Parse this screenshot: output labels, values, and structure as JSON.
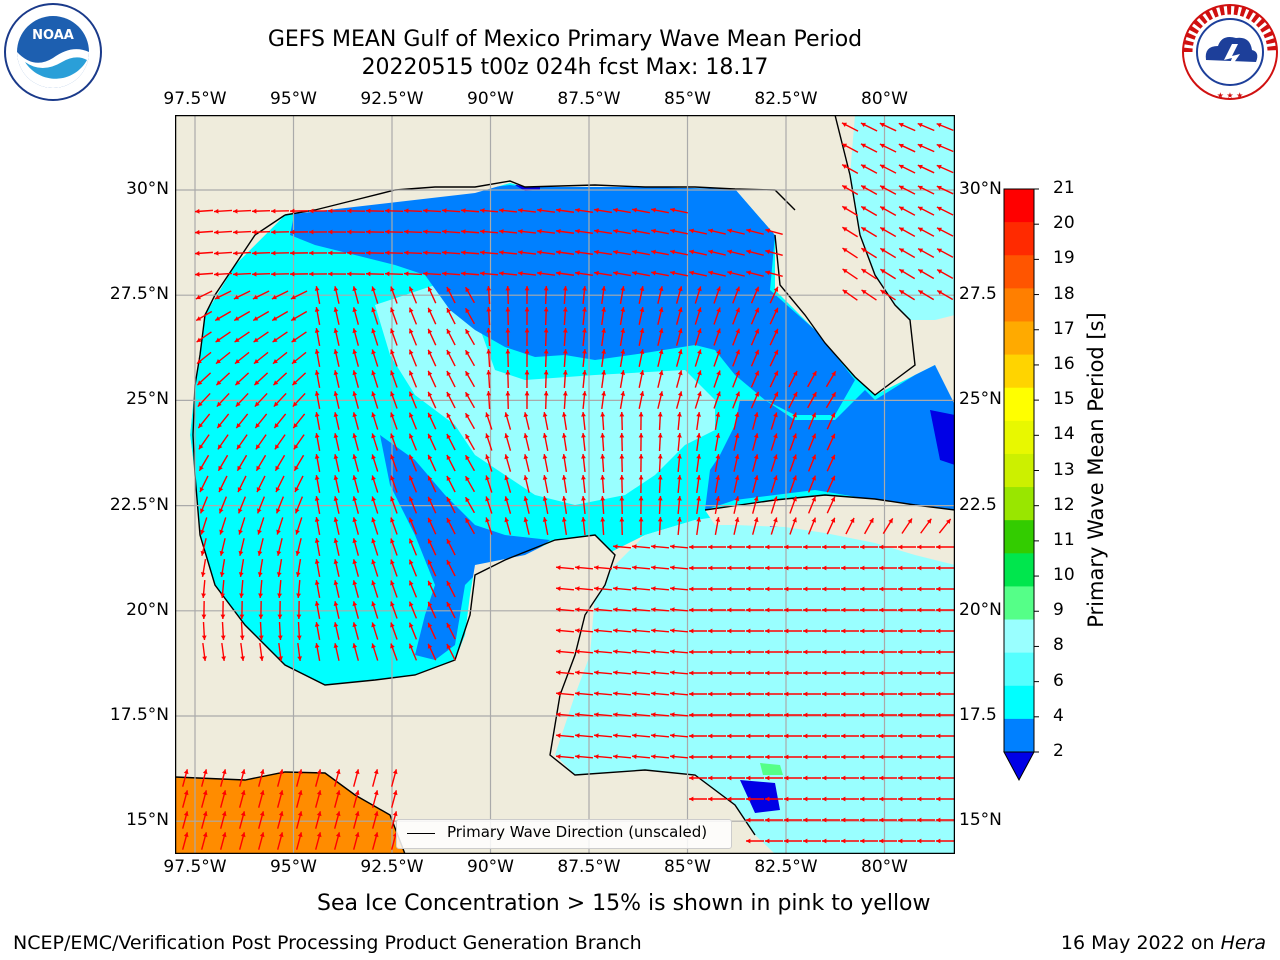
{
  "title_line1": "GEFS MEAN Gulf of Mexico Primary Wave Mean Period",
  "title_line2": "20220515 t00z 024h fcst   Max: 18.17",
  "lon_ticks": [
    "97.5°W",
    "95°W",
    "92.5°W",
    "90°W",
    "87.5°W",
    "85°W",
    "82.5°W",
    "80°W"
  ],
  "lat_ticks": [
    "30°N",
    "27.5°N",
    "25°N",
    "22.5°N",
    "20°N",
    "17.5°N",
    "15°N"
  ],
  "lat_ticks_right": [
    "30°N",
    "27.5",
    "25°N",
    "22.5",
    "20°N",
    "17.5",
    "15°N"
  ],
  "colorbar": {
    "label": "Primary Wave Mean Period [s]",
    "ticks": [
      "21",
      "20",
      "19",
      "18",
      "17",
      "16",
      "15",
      "14",
      "13",
      "12",
      "11",
      "10",
      "9",
      "8",
      "6",
      "4",
      "2"
    ],
    "colors": [
      "#ff0000",
      "#ff2a00",
      "#ff5500",
      "#ff7f00",
      "#ffaa00",
      "#ffd400",
      "#ffff00",
      "#e8f800",
      "#ccf000",
      "#99e600",
      "#33cc00",
      "#00e64d",
      "#55ff88",
      "#99ffff",
      "#55ffff",
      "#00ffff",
      "#0080ff"
    ],
    "under_color": "#0000e6"
  },
  "legend_label": "Primary Wave Direction (unscaled)",
  "caption": "Sea Ice Concentration > 15% is shown in pink to yellow",
  "footer_left": "NCEP/EMC/Verification Post Processing Product Generation Branch",
  "footer_right_date": "16 May 2022 on",
  "footer_right_machine": "Hera",
  "noaa_logo_text": "NOAA",
  "nws_logo_text": "NATIONAL WEATHER SERVICE",
  "colors": {
    "land": "#efecdc",
    "water_cyan": "#00ffff",
    "water_pale": "#99ffff",
    "water_light": "#55ffff",
    "water_blue": "#0080ff",
    "water_dark": "#0000e6",
    "pacific_orange": "#ff8c00",
    "arrow": "#ff0000"
  }
}
